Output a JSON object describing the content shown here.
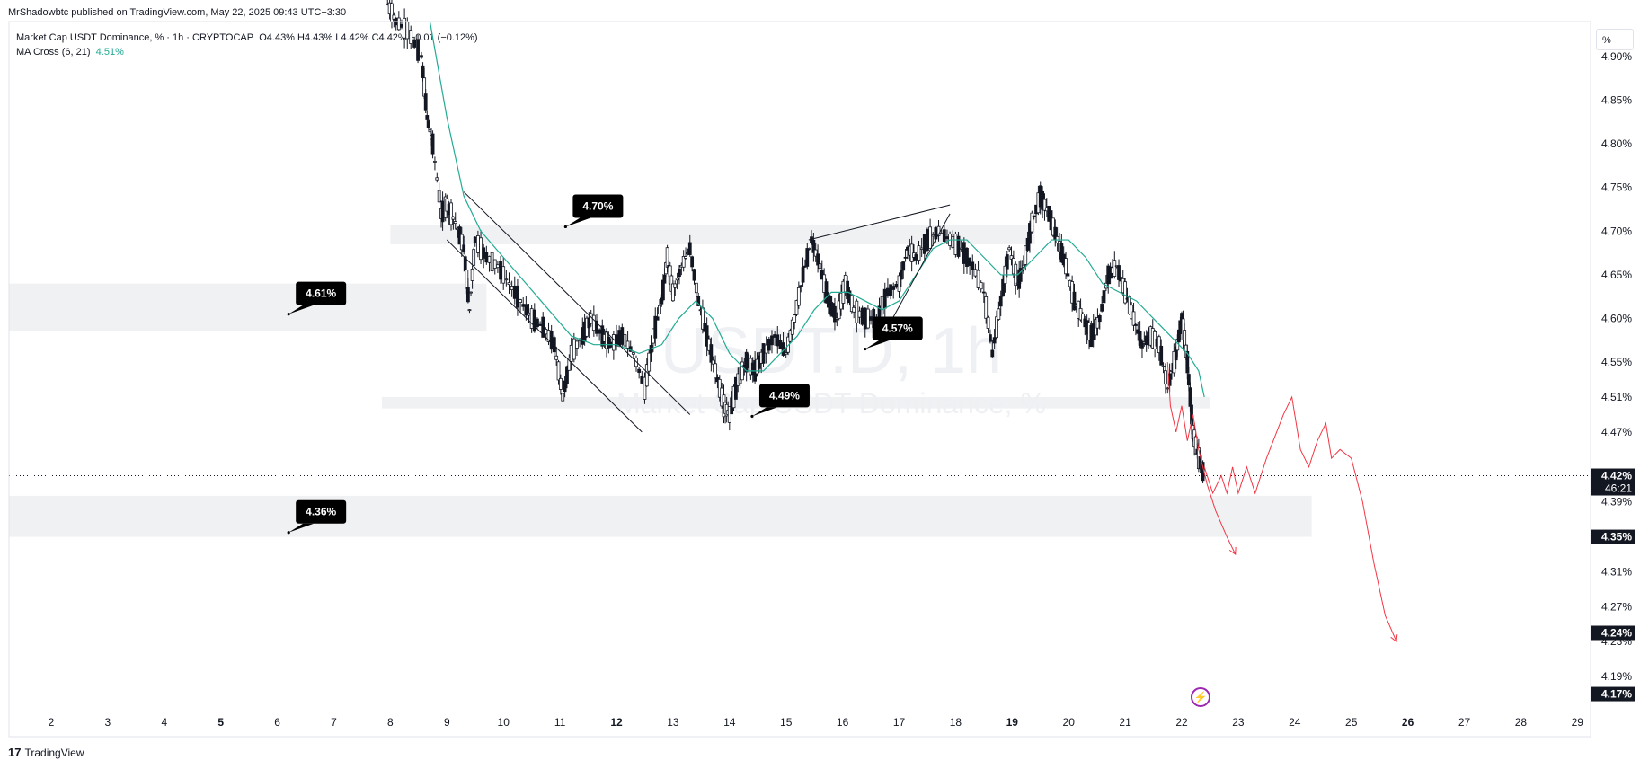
{
  "header": {
    "published": "MrShadowbtc published on TradingView.com, May 22, 2025 09:43 UTC+3:30"
  },
  "legend": {
    "symbol": "Market Cap USDT Dominance, % · 1h · CRYPTOCAP",
    "ohlc": "O4.43% H4.43% L4.42% C4.42% −0.01 (−0.12%)",
    "indicator_name": "MA Cross (6, 21)",
    "indicator_value": "4.51%"
  },
  "watermark": {
    "ticker": "USDT.D, 1h",
    "description": "Market Cap USDT Dominance, %"
  },
  "unit_button": "%",
  "footer": {
    "logo": "17",
    "brand": "TradingView"
  },
  "colors": {
    "candle": "#131722",
    "ma": "#22ab94",
    "projection": "#f23645",
    "zone": "#f0f1f3",
    "label_bg": "#000000"
  },
  "chart_data": {
    "type": "candlestick",
    "x_axis": {
      "ticks": [
        "2",
        "3",
        "4",
        "5",
        "6",
        "7",
        "8",
        "9",
        "10",
        "11",
        "12",
        "13",
        "14",
        "15",
        "16",
        "17",
        "18",
        "19",
        "20",
        "21",
        "22",
        "23",
        "24",
        "25",
        "26",
        "27",
        "28",
        "29"
      ],
      "bold_ticks": [
        "5",
        "12",
        "19",
        "26"
      ],
      "unit": "day (May 2025)"
    },
    "y_axis": {
      "ticks": [
        "4.90%",
        "4.85%",
        "4.80%",
        "4.75%",
        "4.70%",
        "4.65%",
        "4.60%",
        "4.55%",
        "4.51%",
        "4.47%",
        "4.39%",
        "4.31%",
        "4.27%",
        "4.23%",
        "4.19%"
      ],
      "range": [
        4.15,
        4.94
      ],
      "position": "right"
    },
    "price_tags": [
      {
        "value": "4.42%",
        "sub": "46:21",
        "y": 4.42
      },
      {
        "value": "4.35%",
        "y": 4.35
      },
      {
        "value": "4.24%",
        "y": 4.24
      },
      {
        "value": "4.17%",
        "y": 4.17
      }
    ],
    "current_price_line": 4.42,
    "zones": [
      {
        "x0": 8,
        "x1": 19.4,
        "y0": 4.685,
        "y1": 4.707
      },
      {
        "x0": 0.95,
        "x1": 9.7,
        "y0": 4.585,
        "y1": 4.64
      },
      {
        "x0": 7.85,
        "x1": 22.5,
        "y0": 4.497,
        "y1": 4.51
      },
      {
        "x0": 0.95,
        "x1": 24.3,
        "y0": 4.35,
        "y1": 4.397
      }
    ],
    "level_labels": [
      {
        "text": "4.70%",
        "x": 11.1,
        "y": 4.705
      },
      {
        "text": "4.61%",
        "x": 6.2,
        "y": 4.605
      },
      {
        "text": "4.57%",
        "x": 16.4,
        "y": 4.565
      },
      {
        "text": "4.49%",
        "x": 14.4,
        "y": 4.488
      },
      {
        "text": "4.36%",
        "x": 6.2,
        "y": 4.355
      }
    ],
    "price_series": [
      [
        7.95,
        4.96
      ],
      [
        8.1,
        4.94
      ],
      [
        8.3,
        4.93
      ],
      [
        8.55,
        4.9
      ],
      [
        8.65,
        4.83
      ],
      [
        8.75,
        4.8
      ],
      [
        8.9,
        4.72
      ],
      [
        9.0,
        4.73
      ],
      [
        9.15,
        4.71
      ],
      [
        9.3,
        4.68
      ],
      [
        9.4,
        4.61
      ],
      [
        9.5,
        4.69
      ],
      [
        9.7,
        4.67
      ],
      [
        9.9,
        4.66
      ],
      [
        10.1,
        4.64
      ],
      [
        10.3,
        4.62
      ],
      [
        10.5,
        4.6
      ],
      [
        10.7,
        4.59
      ],
      [
        10.9,
        4.57
      ],
      [
        11.05,
        4.51
      ],
      [
        11.2,
        4.56
      ],
      [
        11.4,
        4.58
      ],
      [
        11.55,
        4.6
      ],
      [
        11.75,
        4.58
      ],
      [
        11.9,
        4.57
      ],
      [
        12.1,
        4.58
      ],
      [
        12.3,
        4.56
      ],
      [
        12.5,
        4.52
      ],
      [
        12.65,
        4.58
      ],
      [
        12.8,
        4.62
      ],
      [
        12.9,
        4.67
      ],
      [
        13.0,
        4.63
      ],
      [
        13.15,
        4.66
      ],
      [
        13.3,
        4.68
      ],
      [
        13.45,
        4.62
      ],
      [
        13.6,
        4.58
      ],
      [
        13.75,
        4.54
      ],
      [
        13.9,
        4.5
      ],
      [
        14.0,
        4.49
      ],
      [
        14.15,
        4.53
      ],
      [
        14.3,
        4.55
      ],
      [
        14.45,
        4.54
      ],
      [
        14.6,
        4.56
      ],
      [
        14.8,
        4.58
      ],
      [
        15.0,
        4.56
      ],
      [
        15.15,
        4.6
      ],
      [
        15.3,
        4.65
      ],
      [
        15.45,
        4.69
      ],
      [
        15.6,
        4.66
      ],
      [
        15.75,
        4.62
      ],
      [
        15.9,
        4.6
      ],
      [
        16.05,
        4.64
      ],
      [
        16.2,
        4.61
      ],
      [
        16.4,
        4.6
      ],
      [
        16.6,
        4.6
      ],
      [
        16.8,
        4.63
      ],
      [
        17.0,
        4.64
      ],
      [
        17.15,
        4.68
      ],
      [
        17.3,
        4.67
      ],
      [
        17.5,
        4.69
      ],
      [
        17.7,
        4.7
      ],
      [
        17.9,
        4.69
      ],
      [
        18.1,
        4.68
      ],
      [
        18.3,
        4.66
      ],
      [
        18.5,
        4.63
      ],
      [
        18.65,
        4.56
      ],
      [
        18.8,
        4.62
      ],
      [
        18.95,
        4.68
      ],
      [
        19.1,
        4.64
      ],
      [
        19.2,
        4.66
      ],
      [
        19.35,
        4.71
      ],
      [
        19.5,
        4.74
      ],
      [
        19.65,
        4.72
      ],
      [
        19.8,
        4.69
      ],
      [
        19.95,
        4.66
      ],
      [
        20.1,
        4.62
      ],
      [
        20.25,
        4.6
      ],
      [
        20.4,
        4.58
      ],
      [
        20.55,
        4.6
      ],
      [
        20.7,
        4.65
      ],
      [
        20.85,
        4.66
      ],
      [
        21.0,
        4.63
      ],
      [
        21.15,
        4.6
      ],
      [
        21.3,
        4.57
      ],
      [
        21.45,
        4.58
      ],
      [
        21.6,
        4.57
      ],
      [
        21.75,
        4.52
      ],
      [
        21.9,
        4.56
      ],
      [
        22.0,
        4.6
      ],
      [
        22.1,
        4.55
      ],
      [
        22.2,
        4.47
      ],
      [
        22.3,
        4.44
      ],
      [
        22.4,
        4.42
      ]
    ],
    "ma_series": [
      [
        8.7,
        4.94
      ],
      [
        9.0,
        4.83
      ],
      [
        9.3,
        4.74
      ],
      [
        9.6,
        4.7
      ],
      [
        10.0,
        4.67
      ],
      [
        10.4,
        4.64
      ],
      [
        10.8,
        4.61
      ],
      [
        11.2,
        4.58
      ],
      [
        11.6,
        4.57
      ],
      [
        12.0,
        4.57
      ],
      [
        12.4,
        4.56
      ],
      [
        12.8,
        4.57
      ],
      [
        13.1,
        4.6
      ],
      [
        13.4,
        4.62
      ],
      [
        13.7,
        4.6
      ],
      [
        14.0,
        4.56
      ],
      [
        14.3,
        4.54
      ],
      [
        14.6,
        4.54
      ],
      [
        14.9,
        4.56
      ],
      [
        15.2,
        4.58
      ],
      [
        15.5,
        4.61
      ],
      [
        15.8,
        4.63
      ],
      [
        16.1,
        4.63
      ],
      [
        16.4,
        4.62
      ],
      [
        16.7,
        4.61
      ],
      [
        17.0,
        4.62
      ],
      [
        17.3,
        4.65
      ],
      [
        17.6,
        4.68
      ],
      [
        17.9,
        4.69
      ],
      [
        18.2,
        4.69
      ],
      [
        18.5,
        4.67
      ],
      [
        18.8,
        4.65
      ],
      [
        19.1,
        4.65
      ],
      [
        19.4,
        4.67
      ],
      [
        19.7,
        4.69
      ],
      [
        20.0,
        4.69
      ],
      [
        20.3,
        4.67
      ],
      [
        20.6,
        4.64
      ],
      [
        20.9,
        4.63
      ],
      [
        21.2,
        4.62
      ],
      [
        21.5,
        4.6
      ],
      [
        21.8,
        4.58
      ],
      [
        22.1,
        4.56
      ],
      [
        22.3,
        4.54
      ],
      [
        22.4,
        4.51
      ]
    ],
    "trendlines": [
      {
        "x0": 9.0,
        "y0": 4.69,
        "x1": 12.45,
        "y1": 4.47
      },
      {
        "x0": 9.3,
        "y0": 4.745,
        "x1": 13.3,
        "y1": 4.49
      },
      {
        "x0": 15.4,
        "y0": 4.69,
        "x1": 17.9,
        "y1": 4.73
      },
      {
        "x0": 16.8,
        "y0": 4.59,
        "x1": 17.9,
        "y1": 4.72
      }
    ],
    "projections": [
      [
        [
          21.75,
          4.55
        ],
        [
          21.8,
          4.5
        ],
        [
          21.9,
          4.47
        ],
        [
          22.0,
          4.5
        ],
        [
          22.1,
          4.46
        ],
        [
          22.2,
          4.49
        ],
        [
          22.3,
          4.45
        ],
        [
          22.45,
          4.41
        ],
        [
          22.6,
          4.38
        ],
        [
          22.8,
          4.35
        ],
        [
          22.95,
          4.33
        ]
      ],
      [
        [
          22.4,
          4.43
        ],
        [
          22.55,
          4.4
        ],
        [
          22.7,
          4.42
        ],
        [
          22.8,
          4.4
        ],
        [
          22.9,
          4.43
        ],
        [
          23.0,
          4.4
        ],
        [
          23.15,
          4.43
        ],
        [
          23.3,
          4.4
        ],
        [
          23.5,
          4.44
        ],
        [
          23.8,
          4.49
        ],
        [
          23.95,
          4.51
        ],
        [
          24.1,
          4.45
        ],
        [
          24.25,
          4.43
        ],
        [
          24.4,
          4.46
        ],
        [
          24.55,
          4.48
        ],
        [
          24.65,
          4.44
        ],
        [
          24.8,
          4.45
        ],
        [
          25.0,
          4.44
        ],
        [
          25.2,
          4.39
        ],
        [
          25.4,
          4.32
        ],
        [
          25.6,
          4.26
        ],
        [
          25.8,
          4.23
        ]
      ]
    ]
  }
}
